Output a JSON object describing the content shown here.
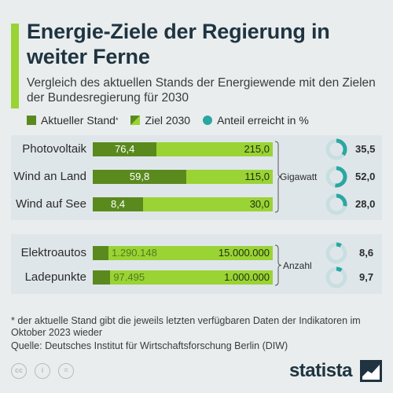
{
  "title": "Energie-Ziele der Regierung in weiter Ferne",
  "subtitle": "Vergleich des aktuellen Stands der Energiewende mit den Zielen der Bundesregierung für 2030",
  "legend": {
    "current": "Aktueller Stand",
    "current_mark": "*",
    "target": "Ziel 2030",
    "share": "Anteil erreicht in %"
  },
  "colors": {
    "current": "#5a8a1e",
    "target": "#9ad334",
    "ring": "#2aa7a0",
    "ring_bg": "#c8dfe2"
  },
  "chart_data": [
    {
      "type": "bar",
      "unit": "Gigawatt",
      "categories": [
        "Photovoltaik",
        "Wind an Land",
        "Wind auf See"
      ],
      "series": [
        {
          "name": "Aktueller Stand",
          "values": [
            76.4,
            59.8,
            8.4
          ],
          "labels": [
            "76,4",
            "59,8",
            "8,4"
          ]
        },
        {
          "name": "Ziel 2030",
          "values": [
            215.0,
            115.0,
            30.0
          ],
          "labels": [
            "215,0",
            "115,0",
            "30,0"
          ]
        },
        {
          "name": "Anteil erreicht in %",
          "values": [
            35.5,
            52.0,
            28.0
          ],
          "labels": [
            "35,5",
            "52,0",
            "28,0"
          ]
        }
      ]
    },
    {
      "type": "bar",
      "unit": "Anzahl",
      "categories": [
        "Elektroautos",
        "Ladepunkte"
      ],
      "series": [
        {
          "name": "Aktueller Stand",
          "values": [
            1290148,
            97495
          ],
          "labels": [
            "1.290.148",
            "97.495"
          ]
        },
        {
          "name": "Ziel 2030",
          "values": [
            15000000,
            1000000
          ],
          "labels": [
            "15.000.000",
            "1.000.000"
          ]
        },
        {
          "name": "Anteil erreicht in %",
          "values": [
            8.6,
            9.7
          ],
          "labels": [
            "8,6",
            "9,7"
          ]
        }
      ]
    }
  ],
  "footnote": "* der aktuelle Stand gibt die jeweils letzten verfügbaren Daten der Indikatoren im Oktober 2023 wieder",
  "source": "Quelle: Deutsches Institut für Wirtschaftsforschung Berlin (DIW)",
  "license_icons": [
    "cc-icon",
    "person-icon",
    "equals-icon"
  ],
  "brand": "statista"
}
